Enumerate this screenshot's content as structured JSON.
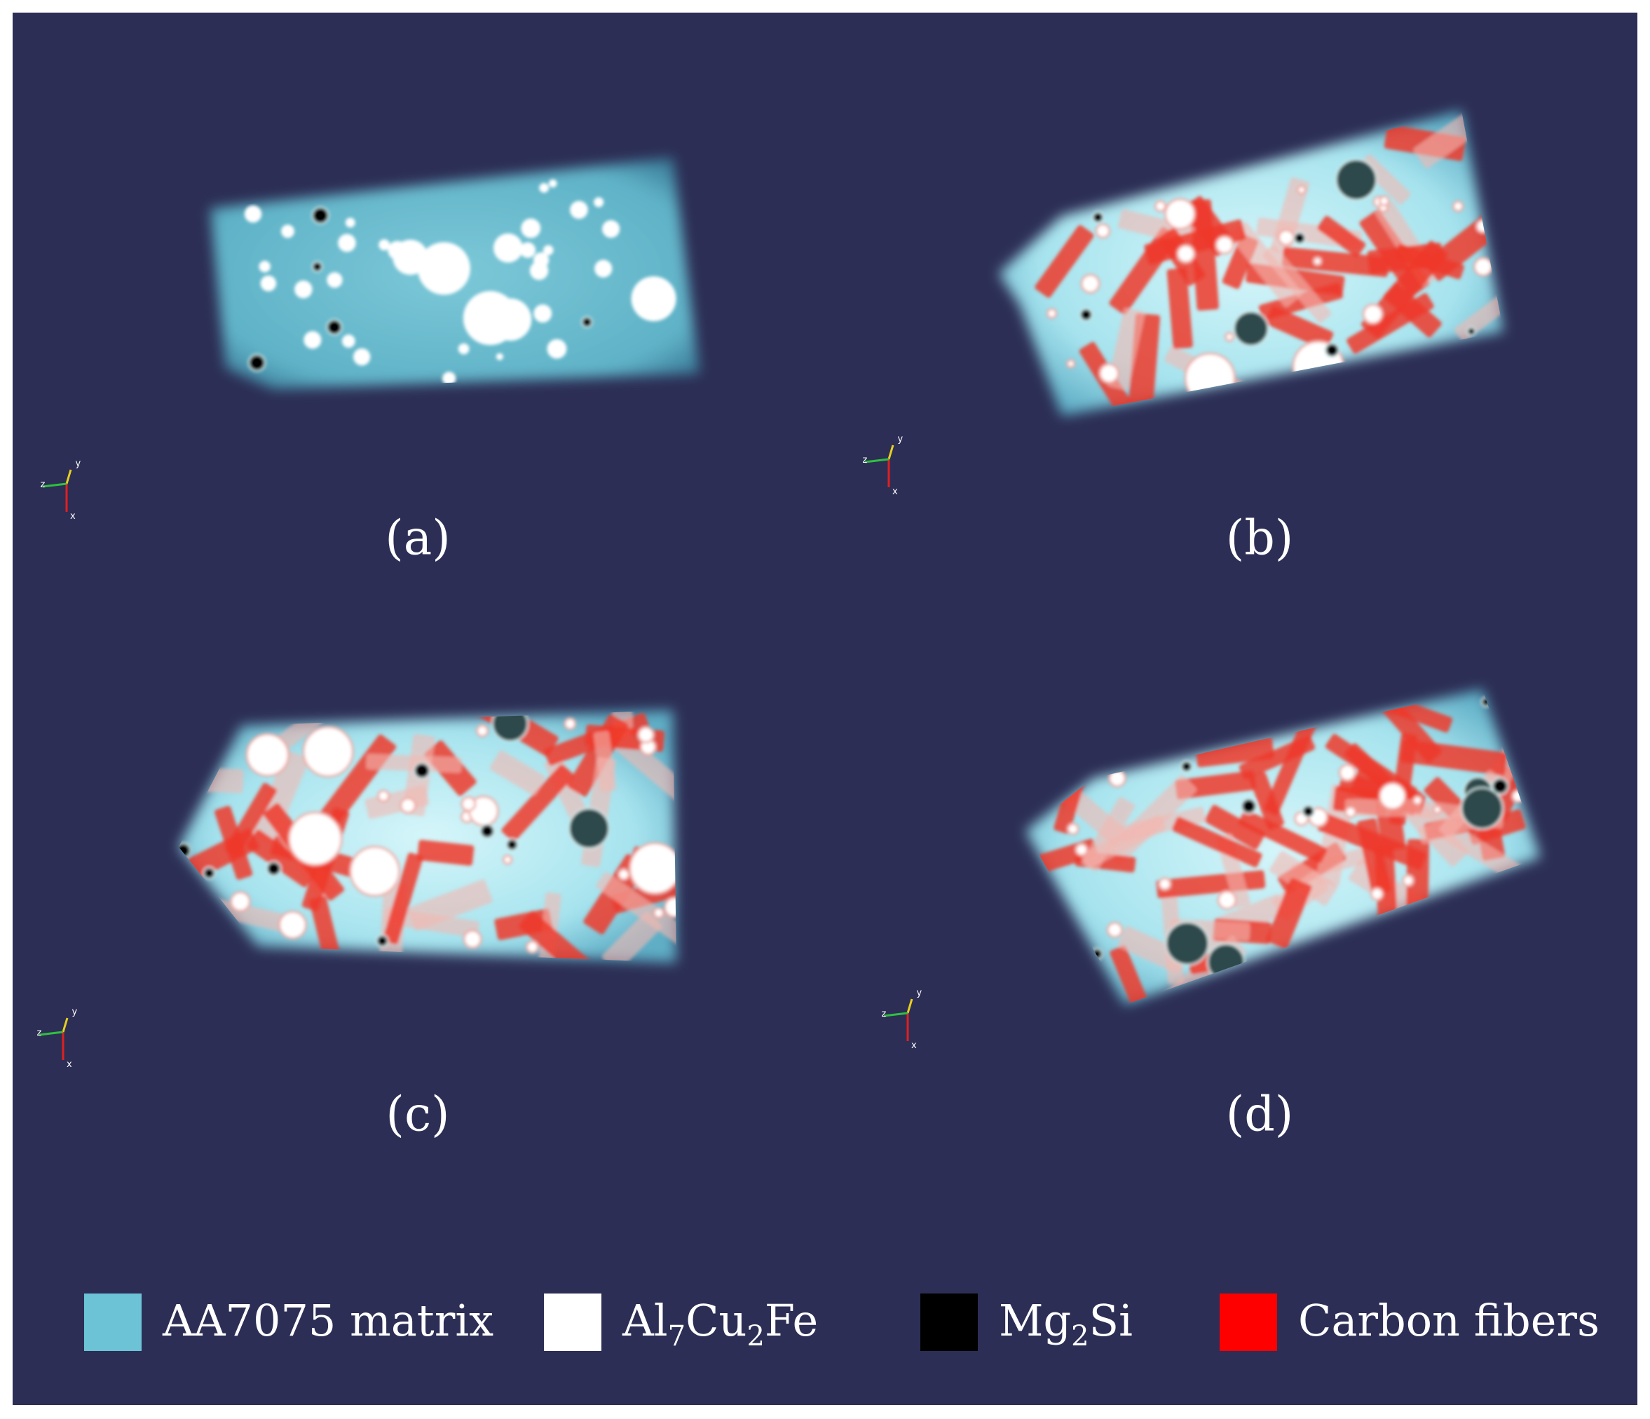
{
  "panels": [
    {
      "label": "(a)",
      "axes": [
        "x",
        "y",
        "z"
      ]
    },
    {
      "label": "(b)",
      "axes": [
        "x",
        "y",
        "z"
      ]
    },
    {
      "label": "(c)",
      "axes": [
        "x",
        "y",
        "z"
      ]
    },
    {
      "label": "(d)",
      "axes": [
        "x",
        "y",
        "z"
      ]
    }
  ],
  "legend": {
    "items": [
      {
        "label": [
          "AA7075 matrix"
        ],
        "color": "#6cc3d5"
      },
      {
        "label": [
          "Al",
          "7",
          "Cu",
          "2",
          "Fe"
        ],
        "color": "#ffffff"
      },
      {
        "label": [
          "Mg",
          "2",
          "Si"
        ],
        "color": "#000000"
      },
      {
        "label": [
          "Carbon fibers"
        ],
        "color": "#ff0000"
      }
    ]
  }
}
